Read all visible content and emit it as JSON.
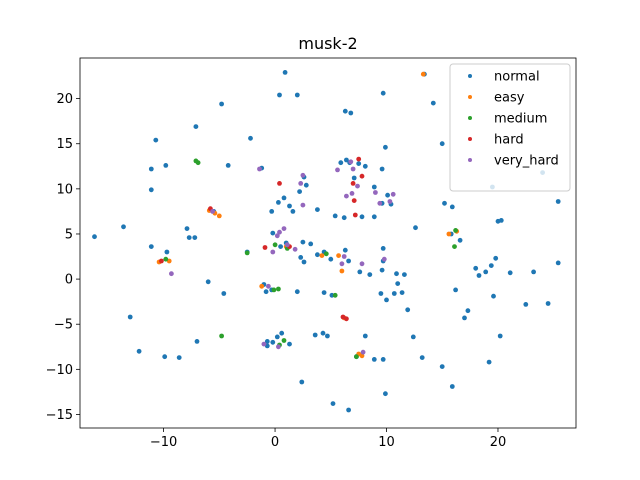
{
  "chart_data": {
    "type": "scatter",
    "title": "musk-2",
    "xlabel": "",
    "ylabel": "",
    "xlim": [
      -17.5,
      27.0
    ],
    "ylim": [
      -16.5,
      24.5
    ],
    "xticks": [
      -10,
      0,
      10,
      20
    ],
    "yticks": [
      -15,
      -10,
      -5,
      0,
      5,
      10,
      15,
      20
    ],
    "grid": false,
    "legend_position": "top-right",
    "series": [
      {
        "name": "normal",
        "color": "#1f77b4",
        "points": [
          [
            0.9,
            22.9
          ],
          [
            13.4,
            22.7
          ],
          [
            9.7,
            20.6
          ],
          [
            2.0,
            20.4
          ],
          [
            0.4,
            20.4
          ],
          [
            14.2,
            19.5
          ],
          [
            -4.8,
            19.4
          ],
          [
            6.3,
            18.6
          ],
          [
            6.8,
            18.4
          ],
          [
            -7.1,
            16.9
          ],
          [
            -10.7,
            15.4
          ],
          [
            -2.2,
            15.6
          ],
          [
            15.0,
            15.0
          ],
          [
            9.9,
            14.6
          ],
          [
            -11.1,
            12.2
          ],
          [
            -9.8,
            12.6
          ],
          [
            -4.2,
            12.6
          ],
          [
            -1.2,
            12.3
          ],
          [
            19.5,
            10.2
          ],
          [
            24.0,
            11.8
          ],
          [
            -11.1,
            9.9
          ],
          [
            0.8,
            9.0
          ],
          [
            0.3,
            8.5
          ],
          [
            1.3,
            8.1
          ],
          [
            -0.3,
            7.5
          ],
          [
            1.6,
            7.5
          ],
          [
            2.6,
            11.3
          ],
          [
            2.8,
            10.4
          ],
          [
            2.2,
            9.7
          ],
          [
            5.9,
            12.9
          ],
          [
            6.4,
            13.2
          ],
          [
            7.5,
            12.8
          ],
          [
            8.1,
            12.5
          ],
          [
            7.1,
            11.2
          ],
          [
            8.9,
            10.2
          ],
          [
            10.1,
            9.3
          ],
          [
            5.4,
            7.0
          ],
          [
            6.2,
            6.8
          ],
          [
            7.8,
            6.9
          ],
          [
            8.9,
            6.9
          ],
          [
            9.6,
            8.4
          ],
          [
            10.4,
            8.3
          ],
          [
            12.6,
            5.7
          ],
          [
            15.2,
            8.4
          ],
          [
            15.9,
            8.0
          ],
          [
            15.8,
            5.0
          ],
          [
            16.6,
            4.3
          ],
          [
            20.0,
            6.4
          ],
          [
            20.3,
            6.5
          ],
          [
            25.4,
            8.6
          ],
          [
            -16.2,
            4.7
          ],
          [
            -13.6,
            5.8
          ],
          [
            -11.1,
            3.6
          ],
          [
            -9.7,
            3.0
          ],
          [
            -7.9,
            5.6
          ],
          [
            -7.7,
            4.6
          ],
          [
            -7.2,
            4.6
          ],
          [
            -5.5,
            7.5
          ],
          [
            -2.5,
            3.0
          ],
          [
            -0.2,
            5.1
          ],
          [
            0.5,
            3.6
          ],
          [
            1.0,
            4.0
          ],
          [
            2.5,
            4.1
          ],
          [
            3.2,
            3.9
          ],
          [
            2.3,
            2.4
          ],
          [
            2.6,
            1.9
          ],
          [
            3.8,
            2.7
          ],
          [
            4.4,
            3.0
          ],
          [
            5.0,
            2.2
          ],
          [
            6.3,
            3.2
          ],
          [
            6.6,
            2.0
          ],
          [
            7.6,
            0.8
          ],
          [
            9.7,
            3.4
          ],
          [
            9.7,
            2.0
          ],
          [
            9.6,
            1.0
          ],
          [
            8.5,
            0.5
          ],
          [
            10.9,
            0.6
          ],
          [
            11.6,
            0.5
          ],
          [
            11.0,
            -0.5
          ],
          [
            10.7,
            -1.6
          ],
          [
            11.4,
            -1.5
          ],
          [
            9.5,
            -1.6
          ],
          [
            10.0,
            -2.3
          ],
          [
            11.9,
            -3.4
          ],
          [
            12.4,
            -6.4
          ],
          [
            13.2,
            -8.7
          ],
          [
            15.0,
            -9.7
          ],
          [
            15.9,
            -11.9
          ],
          [
            17.0,
            -4.3
          ],
          [
            16.2,
            -1.2
          ],
          [
            18.3,
            0.4
          ],
          [
            18.9,
            0.8
          ],
          [
            19.4,
            1.5
          ],
          [
            19.8,
            2.3
          ],
          [
            19.6,
            -1.9
          ],
          [
            19.2,
            -9.2
          ],
          [
            20.2,
            -6.3
          ],
          [
            21.1,
            0.7
          ],
          [
            22.5,
            -2.8
          ],
          [
            23.2,
            0.8
          ],
          [
            24.5,
            -2.7
          ],
          [
            25.4,
            1.8
          ],
          [
            17.3,
            -3.5
          ],
          [
            18.0,
            1.2
          ],
          [
            -6.0,
            -0.3
          ],
          [
            -4.6,
            -1.6
          ],
          [
            -1.0,
            -0.6
          ],
          [
            -0.8,
            -1.4
          ],
          [
            -0.3,
            -1.2
          ],
          [
            2.0,
            -1.4
          ],
          [
            4.4,
            -1.5
          ],
          [
            5.1,
            -1.8
          ],
          [
            -13.0,
            -4.2
          ],
          [
            -12.2,
            -8.0
          ],
          [
            -9.9,
            -8.6
          ],
          [
            -8.6,
            -8.7
          ],
          [
            -7.0,
            -6.9
          ],
          [
            -0.7,
            -6.9
          ],
          [
            0.2,
            -6.4
          ],
          [
            0.6,
            -6.0
          ],
          [
            1.3,
            -7.2
          ],
          [
            3.6,
            -6.2
          ],
          [
            4.3,
            -6.0
          ],
          [
            4.7,
            -6.3
          ],
          [
            2.4,
            -11.4
          ],
          [
            5.2,
            -13.8
          ],
          [
            6.6,
            -14.5
          ],
          [
            7.3,
            -8.6
          ],
          [
            8.9,
            -8.9
          ],
          [
            9.7,
            -8.9
          ],
          [
            9.9,
            -12.7
          ],
          [
            8.1,
            -6.3
          ],
          [
            -0.7,
            -7.4
          ],
          [
            -0.2,
            -7.0
          ],
          [
            3.8,
            7.7
          ],
          [
            6.7,
            12.9
          ],
          [
            9.6,
            12.2
          ]
        ]
      },
      {
        "name": "easy",
        "color": "#ff7f0e",
        "points": [
          [
            13.3,
            22.7
          ],
          [
            -5.9,
            7.6
          ],
          [
            -5.4,
            7.3
          ],
          [
            -5.0,
            7.0
          ],
          [
            -9.5,
            2.0
          ],
          [
            -10.4,
            1.9
          ],
          [
            15.6,
            5.0
          ],
          [
            16.3,
            5.3
          ],
          [
            7.5,
            -8.3
          ],
          [
            7.8,
            -8.5
          ],
          [
            1.0,
            3.6
          ],
          [
            4.2,
            2.6
          ],
          [
            6.0,
            0.9
          ],
          [
            5.7,
            2.6
          ],
          [
            -1.2,
            -0.8
          ],
          [
            6.2,
            -4.3
          ]
        ]
      },
      {
        "name": "medium",
        "color": "#2ca02c",
        "points": [
          [
            -7.1,
            13.1
          ],
          [
            -6.9,
            12.9
          ],
          [
            -2.5,
            2.9
          ],
          [
            -4.8,
            -6.3
          ],
          [
            0.0,
            3.8
          ],
          [
            1.1,
            3.4
          ],
          [
            4.6,
            2.8
          ],
          [
            -0.1,
            -1.2
          ],
          [
            0.3,
            -1.1
          ],
          [
            5.4,
            -1.8
          ],
          [
            7.3,
            -8.6
          ],
          [
            16.1,
            3.6
          ],
          [
            16.2,
            5.4
          ],
          [
            0.4,
            -7.3
          ],
          [
            0.8,
            -6.8
          ],
          [
            -9.8,
            2.2
          ]
        ]
      },
      {
        "name": "hard",
        "color": "#d62728",
        "points": [
          [
            7.5,
            13.3
          ],
          [
            7.0,
            10.6
          ],
          [
            7.1,
            8.7
          ],
          [
            7.2,
            7.1
          ],
          [
            -5.8,
            7.8
          ],
          [
            -0.9,
            3.5
          ],
          [
            1.3,
            3.6
          ],
          [
            6.4,
            -4.4
          ],
          [
            6.1,
            -4.2
          ],
          [
            -10.2,
            2.0
          ],
          [
            0.4,
            10.6
          ],
          [
            7.8,
            11.4
          ]
        ]
      },
      {
        "name": "very_hard",
        "color": "#9467bd",
        "points": [
          [
            -1.4,
            12.2
          ],
          [
            2.5,
            11.5
          ],
          [
            2.3,
            10.6
          ],
          [
            7.0,
            12.2
          ],
          [
            7.4,
            10.3
          ],
          [
            9.4,
            8.4
          ],
          [
            10.3,
            8.6
          ],
          [
            -5.6,
            7.5
          ],
          [
            -0.2,
            3.0
          ],
          [
            1.1,
            3.8
          ],
          [
            1.8,
            3.3
          ],
          [
            6.0,
            1.7
          ],
          [
            6.2,
            2.5
          ],
          [
            7.8,
            1.7
          ],
          [
            9.8,
            2.2
          ],
          [
            -9.3,
            0.6
          ],
          [
            -0.6,
            -0.8
          ],
          [
            -1.0,
            -7.2
          ],
          [
            0.3,
            -7.5
          ],
          [
            7.9,
            -8.1
          ],
          [
            0.8,
            5.6
          ],
          [
            0.4,
            5.2
          ],
          [
            0.2,
            4.8
          ],
          [
            6.4,
            9.2
          ],
          [
            6.9,
            9.5
          ],
          [
            9.0,
            9.6
          ],
          [
            10.6,
            9.4
          ],
          [
            2.5,
            8.2
          ],
          [
            6.8,
            13.0
          ],
          [
            5.6,
            12.1
          ]
        ]
      }
    ]
  }
}
